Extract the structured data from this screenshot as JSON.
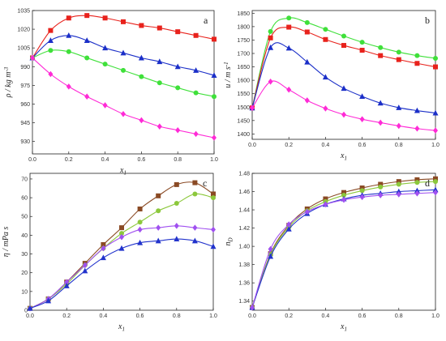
{
  "colors": {
    "red": "#e8221c",
    "blue": "#1b2fc8",
    "green": "#3fe03a",
    "magenta": "#ff2ad6",
    "brown": "#8a4a24",
    "olive": "#8cc83c",
    "violet": "#a050f0",
    "navy": "#2233cc"
  },
  "chart_data": [
    {
      "type": "line",
      "panel_label": "a",
      "xlabel": "x",
      "xlabel_sub": "1",
      "ylabel": "ρ / kg m",
      "ylabel_sup": "-3",
      "xlim": [
        0,
        1
      ],
      "ylim": [
        920,
        1035
      ],
      "xticks": [
        "0.0",
        "0.2",
        "0.4",
        "0.6",
        "0.8",
        "1.0"
      ],
      "yticks": [
        930,
        945,
        960,
        975,
        990,
        1005,
        1020,
        1035
      ],
      "series": [
        {
          "color": "red",
          "marker": "square",
          "x": [
            0,
            0.1,
            0.2,
            0.3,
            0.4,
            0.5,
            0.6,
            0.7,
            0.8,
            0.9,
            1.0
          ],
          "y": [
            997,
            1019,
            1029,
            1031,
            1029,
            1026,
            1023,
            1021,
            1018,
            1015,
            1012
          ]
        },
        {
          "color": "blue",
          "marker": "triangle",
          "x": [
            0,
            0.1,
            0.2,
            0.3,
            0.4,
            0.5,
            0.6,
            0.7,
            0.8,
            0.9,
            1.0
          ],
          "y": [
            997,
            1011,
            1015,
            1011,
            1005,
            1001,
            997,
            994,
            990,
            987,
            983
          ]
        },
        {
          "color": "green",
          "marker": "circle",
          "x": [
            0,
            0.1,
            0.2,
            0.3,
            0.4,
            0.5,
            0.6,
            0.7,
            0.8,
            0.9,
            1.0
          ],
          "y": [
            997,
            1003,
            1002,
            997,
            992,
            987,
            982,
            977,
            973,
            969,
            966
          ]
        },
        {
          "color": "magenta",
          "marker": "diamond",
          "x": [
            0,
            0.1,
            0.2,
            0.3,
            0.4,
            0.5,
            0.6,
            0.7,
            0.8,
            0.9,
            1.0
          ],
          "y": [
            997,
            984,
            974,
            966,
            959,
            952,
            947,
            942,
            939,
            936,
            933
          ]
        }
      ]
    },
    {
      "type": "line",
      "panel_label": "b",
      "xlabel": "x",
      "xlabel_sub": "1",
      "ylabel": "u / m s",
      "ylabel_sup": "-1",
      "xlim": [
        0,
        1
      ],
      "ylim": [
        1380,
        1860
      ],
      "xticks": [
        "0.0",
        "0.2",
        "0.4",
        "0.6",
        "0.8",
        "1.0"
      ],
      "yticks": [
        1400,
        1450,
        1500,
        1550,
        1600,
        1650,
        1700,
        1750,
        1800,
        1850
      ],
      "series": [
        {
          "color": "green",
          "marker": "circle",
          "x": [
            0,
            0.1,
            0.2,
            0.3,
            0.4,
            0.5,
            0.6,
            0.7,
            0.8,
            0.9,
            1.0
          ],
          "y": [
            1497,
            1782,
            1832,
            1815,
            1790,
            1765,
            1742,
            1722,
            1705,
            1692,
            1682
          ]
        },
        {
          "color": "red",
          "marker": "square",
          "x": [
            0,
            0.1,
            0.2,
            0.3,
            0.4,
            0.5,
            0.6,
            0.7,
            0.8,
            0.9,
            1.0
          ],
          "y": [
            1497,
            1758,
            1798,
            1780,
            1752,
            1730,
            1712,
            1692,
            1677,
            1663,
            1650
          ]
        },
        {
          "color": "blue",
          "marker": "triangle",
          "x": [
            0,
            0.1,
            0.2,
            0.3,
            0.4,
            0.5,
            0.6,
            0.7,
            0.8,
            0.9,
            1.0
          ],
          "y": [
            1497,
            1722,
            1720,
            1668,
            1612,
            1570,
            1540,
            1515,
            1498,
            1487,
            1478
          ]
        },
        {
          "color": "magenta",
          "marker": "diamond",
          "x": [
            0,
            0.1,
            0.2,
            0.3,
            0.4,
            0.5,
            0.6,
            0.7,
            0.8,
            0.9,
            1.0
          ],
          "y": [
            1497,
            1595,
            1565,
            1525,
            1495,
            1472,
            1455,
            1442,
            1430,
            1420,
            1413
          ]
        }
      ]
    },
    {
      "type": "line",
      "panel_label": "c",
      "xlabel": "x",
      "xlabel_sub": "1",
      "ylabel": "η / mPa s",
      "ylabel_sup": "",
      "xlim": [
        0,
        1
      ],
      "ylim": [
        0,
        73
      ],
      "xticks": [
        "0.0",
        "0.2",
        "0.4",
        "0.6",
        "0.8",
        "1.0"
      ],
      "yticks": [
        0,
        10,
        20,
        30,
        40,
        50,
        60,
        70
      ],
      "series": [
        {
          "color": "brown",
          "marker": "square",
          "x": [
            0,
            0.1,
            0.2,
            0.3,
            0.4,
            0.5,
            0.6,
            0.7,
            0.8,
            0.9,
            1.0
          ],
          "y": [
            1,
            6,
            15,
            25,
            35,
            44,
            54,
            61,
            67,
            68,
            62
          ]
        },
        {
          "color": "olive",
          "marker": "circle",
          "x": [
            0,
            0.1,
            0.2,
            0.3,
            0.4,
            0.5,
            0.6,
            0.7,
            0.8,
            0.9,
            1.0
          ],
          "y": [
            1,
            6,
            14,
            24,
            33,
            41,
            47,
            53,
            57,
            62,
            60
          ]
        },
        {
          "color": "violet",
          "marker": "diamond",
          "x": [
            0,
            0.1,
            0.2,
            0.3,
            0.4,
            0.5,
            0.6,
            0.7,
            0.8,
            0.9,
            1.0
          ],
          "y": [
            1,
            6,
            15,
            24,
            33,
            39,
            43,
            44,
            45,
            44,
            43
          ]
        },
        {
          "color": "navy",
          "marker": "triangle",
          "x": [
            0,
            0.1,
            0.2,
            0.3,
            0.4,
            0.5,
            0.6,
            0.7,
            0.8,
            0.9,
            1.0
          ],
          "y": [
            1,
            5,
            13,
            21,
            28,
            33,
            36,
            37,
            38,
            37,
            34
          ]
        }
      ]
    },
    {
      "type": "line",
      "panel_label": "d",
      "xlabel": "x",
      "xlabel_sub": "1",
      "ylabel": "n",
      "ylabel_sub": "D",
      "xlim": [
        0,
        1
      ],
      "ylim": [
        1.33,
        1.48
      ],
      "xticks": [
        "0.0",
        "0.2",
        "0.4",
        "0.6",
        "0.8",
        "1.0"
      ],
      "yticks": [
        "1.34",
        "1.36",
        "1.38",
        "1.40",
        "1.42",
        "1.44",
        "1.46",
        "1.48"
      ],
      "series": [
        {
          "color": "brown",
          "marker": "square",
          "x": [
            0,
            0.1,
            0.2,
            0.3,
            0.4,
            0.5,
            0.6,
            0.7,
            0.8,
            0.9,
            1.0
          ],
          "y": [
            1.333,
            1.392,
            1.423,
            1.441,
            1.452,
            1.459,
            1.464,
            1.468,
            1.471,
            1.473,
            1.474
          ]
        },
        {
          "color": "olive",
          "marker": "circle",
          "x": [
            0,
            0.1,
            0.2,
            0.3,
            0.4,
            0.5,
            0.6,
            0.7,
            0.8,
            0.9,
            1.0
          ],
          "y": [
            1.333,
            1.391,
            1.421,
            1.439,
            1.449,
            1.456,
            1.461,
            1.465,
            1.468,
            1.47,
            1.471
          ]
        },
        {
          "color": "navy",
          "marker": "triangle",
          "x": [
            0,
            0.1,
            0.2,
            0.3,
            0.4,
            0.5,
            0.6,
            0.7,
            0.8,
            0.9,
            1.0
          ],
          "y": [
            1.333,
            1.389,
            1.419,
            1.436,
            1.446,
            1.452,
            1.456,
            1.458,
            1.46,
            1.461,
            1.462
          ]
        },
        {
          "color": "violet",
          "marker": "diamond",
          "x": [
            0,
            0.1,
            0.2,
            0.3,
            0.4,
            0.5,
            0.6,
            0.7,
            0.8,
            0.9,
            1.0
          ],
          "y": [
            1.333,
            1.397,
            1.424,
            1.438,
            1.446,
            1.451,
            1.454,
            1.456,
            1.457,
            1.458,
            1.459
          ]
        }
      ]
    }
  ]
}
